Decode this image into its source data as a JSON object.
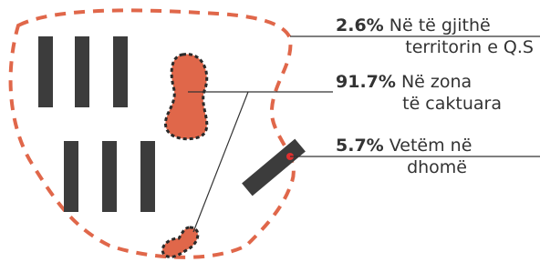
{
  "items": [
    {
      "value": "2.6%",
      "lines": [
        "Në të gjithë",
        "territorin e Q.S"
      ]
    },
    {
      "value": "91.7%",
      "lines": [
        "Në zona",
        "të caktuara"
      ]
    },
    {
      "value": "5.7%",
      "lines": [
        "Vetëm në",
        "dhomë"
      ]
    }
  ]
}
